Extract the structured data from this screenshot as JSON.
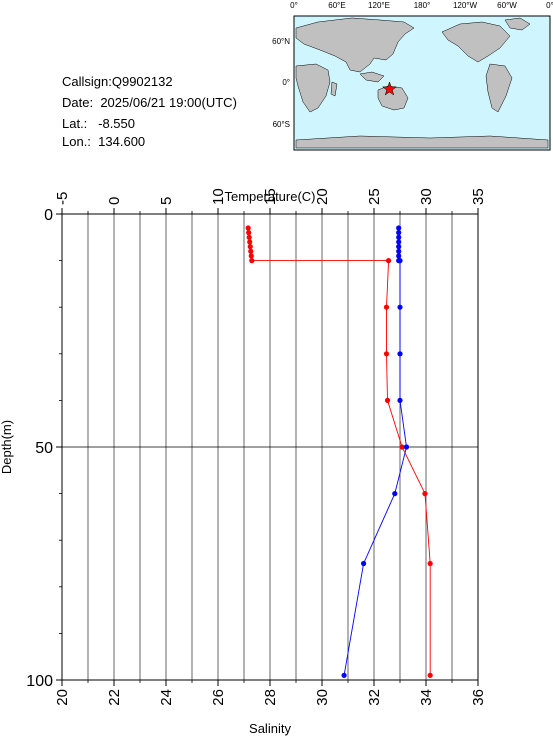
{
  "station": {
    "callsign_label": "Callsign:",
    "callsign": "Q9902132",
    "date_label": "Date:",
    "date": "2025/06/21 19:00(UTC)",
    "lat_label": "Lat.:",
    "lat": "-8.550",
    "lon_label": "Lon.:",
    "lon": "134.600"
  },
  "map": {
    "top_labels": [
      "0°",
      "60°E",
      "120°E",
      "180°",
      "120°W",
      "60°W",
      "0°"
    ],
    "lat_labels": [
      "60°N",
      "0°",
      "60°S"
    ],
    "marker_color": "#ff0000",
    "land_color": "#c0c0c0",
    "ocean_color": "#cff6ff"
  },
  "chart_data": {
    "type": "line",
    "ylabel": "Depth(m)",
    "top_axis_label": "Temperature(C)",
    "bottom_axis_label": "Salinity",
    "y_range": [
      0,
      100
    ],
    "y_inverted": true,
    "y_ticks": [
      "0",
      "50",
      "100"
    ],
    "temperature_range": [
      -5,
      35
    ],
    "temperature_ticks": [
      "-5",
      "0",
      "5",
      "10",
      "15",
      "20",
      "25",
      "30",
      "35"
    ],
    "salinity_range": [
      20,
      36
    ],
    "salinity_ticks": [
      "20",
      "22",
      "24",
      "26",
      "28",
      "30",
      "32",
      "34",
      "36"
    ],
    "grid": true,
    "series": [
      {
        "quantity": "temperature",
        "color": "#ff0000",
        "points": [
          [
            12.9,
            3
          ],
          [
            12.95,
            4
          ],
          [
            13.0,
            5
          ],
          [
            13.05,
            6
          ],
          [
            13.1,
            7
          ],
          [
            13.15,
            8
          ],
          [
            13.2,
            9
          ],
          [
            13.25,
            10
          ],
          [
            26.4,
            10
          ],
          [
            26.2,
            20
          ],
          [
            26.2,
            30
          ],
          [
            26.3,
            40
          ],
          [
            27.7,
            50
          ],
          [
            29.9,
            60
          ],
          [
            30.4,
            75
          ],
          [
            30.4,
            99
          ]
        ]
      },
      {
        "quantity": "salinity",
        "color": "#0000ff",
        "points": [
          [
            32.95,
            3
          ],
          [
            32.95,
            4
          ],
          [
            32.95,
            5
          ],
          [
            32.95,
            6
          ],
          [
            32.95,
            7
          ],
          [
            32.95,
            8
          ],
          [
            32.95,
            9
          ],
          [
            32.95,
            10
          ],
          [
            33.0,
            10
          ],
          [
            33.0,
            20
          ],
          [
            33.0,
            30
          ],
          [
            33.0,
            40
          ],
          [
            33.25,
            50
          ],
          [
            32.8,
            60
          ],
          [
            31.6,
            75
          ],
          [
            30.85,
            99
          ]
        ]
      }
    ]
  }
}
